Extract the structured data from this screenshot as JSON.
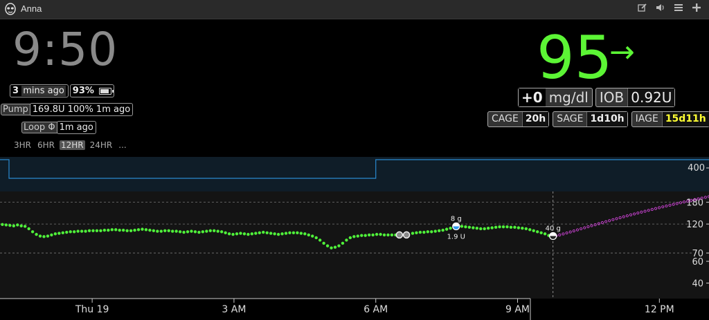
{
  "app": {
    "title": "Anna"
  },
  "toolbar": {
    "icons": [
      "edit-icon",
      "volume-icon",
      "menu-icon",
      "add-icon"
    ]
  },
  "clock": {
    "time": "9:50"
  },
  "status": {
    "mins_value": "3",
    "mins_label": "mins ago",
    "battery_percent": "93%",
    "battery_level": 0.93,
    "pump_label": "Pump",
    "pump_value": "169.8U 100% 1m ago",
    "loop_label": "Loop",
    "loop_symbol": "Φ",
    "loop_value": "1m ago"
  },
  "ranges": [
    "3HR",
    "6HR",
    "12HR",
    "24HR",
    "..."
  ],
  "ranges_active": "12HR",
  "bg": {
    "value": "95",
    "arrow": "→",
    "delta": "+0",
    "unit": "mg/dl",
    "iob_label": "IOB",
    "iob_value": "0.92U",
    "cage_label": "CAGE",
    "cage_value": "20h",
    "sage_label": "SAGE",
    "sage_value": "1d10h",
    "iage_label": "IAGE",
    "iage_value": "15d11h",
    "iage_color": "#ffff33",
    "bg_color": "#5cf535"
  },
  "chart_data": {
    "type": "scatter",
    "x_ticks": [
      "Thu 19",
      "3 AM",
      "6 AM",
      "9 AM",
      "12 PM"
    ],
    "x_tick_hours": [
      0,
      3,
      6,
      9,
      12
    ],
    "x_range": [
      -1.95,
      13.05
    ],
    "now_hour": 9.75,
    "y_ticks_main": [
      40,
      60,
      70,
      120,
      180
    ],
    "y_lines": [
      70,
      120,
      180
    ],
    "y_tick_top": 400,
    "y_range": [
      30,
      220
    ],
    "basal_steps": [
      {
        "from": -1.95,
        "to": 6.0,
        "value": "low"
      },
      {
        "from": 6.0,
        "to": 13.05,
        "value": "high"
      }
    ],
    "glucose": [
      [
        -1.9,
        119
      ],
      [
        -1.82,
        118
      ],
      [
        -1.74,
        117
      ],
      [
        -1.66,
        116
      ],
      [
        -1.58,
        118
      ],
      [
        -1.5,
        116
      ],
      [
        -1.42,
        115
      ],
      [
        -1.34,
        110
      ],
      [
        -1.26,
        104
      ],
      [
        -1.18,
        99
      ],
      [
        -1.1,
        96
      ],
      [
        -1.02,
        95
      ],
      [
        -0.94,
        96
      ],
      [
        -0.86,
        98
      ],
      [
        -0.78,
        100
      ],
      [
        -0.7,
        101
      ],
      [
        -0.62,
        102
      ],
      [
        -0.54,
        103
      ],
      [
        -0.46,
        104
      ],
      [
        -0.38,
        104
      ],
      [
        -0.3,
        105
      ],
      [
        -0.22,
        105
      ],
      [
        -0.14,
        105
      ],
      [
        -0.06,
        106
      ],
      [
        0.02,
        106
      ],
      [
        0.1,
        106
      ],
      [
        0.18,
        106
      ],
      [
        0.26,
        107
      ],
      [
        0.34,
        107
      ],
      [
        0.42,
        108
      ],
      [
        0.5,
        108
      ],
      [
        0.58,
        107
      ],
      [
        0.66,
        107
      ],
      [
        0.74,
        106
      ],
      [
        0.82,
        106
      ],
      [
        0.9,
        107
      ],
      [
        0.98,
        108
      ],
      [
        1.06,
        109
      ],
      [
        1.14,
        108
      ],
      [
        1.22,
        107
      ],
      [
        1.3,
        106
      ],
      [
        1.38,
        105
      ],
      [
        1.46,
        105
      ],
      [
        1.54,
        106
      ],
      [
        1.62,
        106
      ],
      [
        1.7,
        105
      ],
      [
        1.78,
        105
      ],
      [
        1.86,
        104
      ],
      [
        1.94,
        103
      ],
      [
        2.02,
        104
      ],
      [
        2.1,
        105
      ],
      [
        2.18,
        104
      ],
      [
        2.26,
        103
      ],
      [
        2.34,
        104
      ],
      [
        2.42,
        105
      ],
      [
        2.5,
        106
      ],
      [
        2.58,
        106
      ],
      [
        2.66,
        105
      ],
      [
        2.74,
        104
      ],
      [
        2.82,
        102
      ],
      [
        2.9,
        100
      ],
      [
        2.98,
        99
      ],
      [
        3.06,
        100
      ],
      [
        3.14,
        101
      ],
      [
        3.22,
        100
      ],
      [
        3.3,
        99
      ],
      [
        3.38,
        100
      ],
      [
        3.46,
        101
      ],
      [
        3.54,
        102
      ],
      [
        3.62,
        103
      ],
      [
        3.7,
        102
      ],
      [
        3.78,
        101
      ],
      [
        3.86,
        100
      ],
      [
        3.94,
        99
      ],
      [
        4.02,
        100
      ],
      [
        4.1,
        101
      ],
      [
        4.18,
        102
      ],
      [
        4.26,
        102
      ],
      [
        4.34,
        102
      ],
      [
        4.42,
        101
      ],
      [
        4.5,
        100
      ],
      [
        4.58,
        98
      ],
      [
        4.66,
        96
      ],
      [
        4.74,
        93
      ],
      [
        4.82,
        89
      ],
      [
        4.9,
        84
      ],
      [
        4.98,
        80
      ],
      [
        5.06,
        77
      ],
      [
        5.14,
        78
      ],
      [
        5.22,
        80
      ],
      [
        5.3,
        84
      ],
      [
        5.38,
        89
      ],
      [
        5.46,
        93
      ],
      [
        5.54,
        95
      ],
      [
        5.62,
        96
      ],
      [
        5.7,
        97
      ],
      [
        5.78,
        97
      ],
      [
        5.86,
        98
      ],
      [
        5.94,
        98
      ],
      [
        6.02,
        99
      ],
      [
        6.1,
        99
      ],
      [
        6.18,
        98
      ],
      [
        6.26,
        98
      ],
      [
        6.34,
        98
      ],
      [
        6.42,
        98
      ],
      [
        6.78,
        101
      ],
      [
        6.86,
        102
      ],
      [
        6.94,
        103
      ],
      [
        7.02,
        103
      ],
      [
        7.1,
        104
      ],
      [
        7.18,
        104
      ],
      [
        7.26,
        105
      ],
      [
        7.34,
        106
      ],
      [
        7.42,
        107
      ],
      [
        7.5,
        109
      ],
      [
        7.58,
        111
      ],
      [
        7.66,
        113
      ],
      [
        7.74,
        115
      ],
      [
        7.82,
        115
      ],
      [
        7.9,
        114
      ],
      [
        7.98,
        113
      ],
      [
        8.06,
        112
      ],
      [
        8.14,
        111
      ],
      [
        8.22,
        110
      ],
      [
        8.3,
        110
      ],
      [
        8.38,
        111
      ],
      [
        8.46,
        112
      ],
      [
        8.54,
        113
      ],
      [
        8.62,
        114
      ],
      [
        8.7,
        114
      ],
      [
        8.78,
        114
      ],
      [
        8.86,
        113
      ],
      [
        8.94,
        113
      ],
      [
        9.02,
        112
      ],
      [
        9.1,
        111
      ],
      [
        9.18,
        110
      ],
      [
        9.26,
        108
      ],
      [
        9.34,
        106
      ],
      [
        9.42,
        104
      ],
      [
        9.5,
        102
      ],
      [
        9.58,
        100
      ],
      [
        9.66,
        97
      ],
      [
        9.74,
        95
      ]
    ],
    "forecast": {
      "from": [
        9.74,
        95
      ],
      "to": [
        13.05,
        200
      ]
    },
    "calibrations": [
      [
        6.5,
        98
      ],
      [
        6.65,
        98
      ]
    ],
    "treatments": [
      {
        "hour": 7.7,
        "value": 115,
        "carbs": "8 g",
        "insulin": "1.9 U"
      },
      {
        "hour": 9.75,
        "value": 96,
        "carbs": "40 g",
        "insulin": ""
      }
    ]
  }
}
